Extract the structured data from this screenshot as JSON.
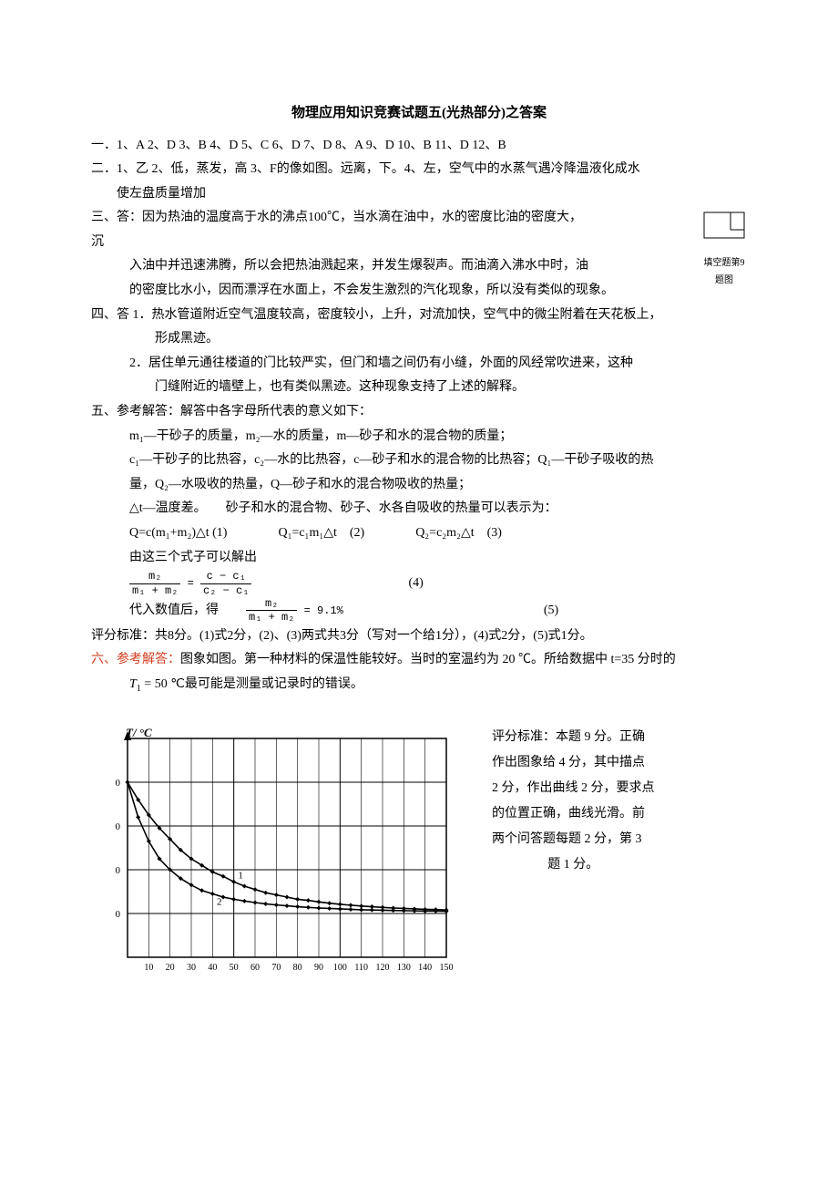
{
  "title": "物理应用知识竞赛试题五(光热部分)之答案",
  "section1": "一．1、A 2、D 3、B 4、D 5、C 6、D 7、D 8、A 9、D 10、B 11、D 12、B",
  "section2_a": "二．1、乙  2、低，蒸发，高  3、F的像如图。远离，下。4、左，空气中的水蒸气遇冷降温液化成水",
  "section2_b": "使左盘质量增加",
  "section3_a": "三、答：因为热油的温度高于水的沸点100℃，当水滴在油中，水的密度比油的密度大，",
  "section3_a2": "沉",
  "section3_b": "入油中并迅速沸腾，所以会把热油溅起来，并发生爆裂声。而油滴入沸水中时，油",
  "section3_c": "的密度比水小，因而漂浮在水面上，不会发生激烈的汽化现象，所以没有类似的现象。",
  "section4_a": "四、答 1．热水管道附近空气温度较高，密度较小，上升，对流加快，空气中的微尘附着在天花板上，",
  "section4_b": "形成黑迹。",
  "section4_c": "2．居住单元通往楼道的门比较严实，但门和墙之间仍有小缝，外面的风经常吹进来，这种",
  "section4_d": "门缝附近的墙壁上，也有类似黑迹。这种现象支持了上述的解释。",
  "section5_a": "五、参考解答：解答中各字母所代表的意义如下：",
  "section5_b": "m₁—干砂子的质量，m₂—水的质量，m—砂子和水的混合物的质量；",
  "section5_c": "c₁—干砂子的比热容，c₂—水的比热容，c—砂子和水的混合物的比热容；Q₁—干砂子吸收的热",
  "section5_d": "量，Q₂—水吸收的热量，Q—砂子和水的混合物吸收的热量；",
  "section5_e": "△t—温度差。　　砂子和水的混合物、砂子、水各自吸收的热量可以表示为：",
  "section5_f": "Q=c(m₁+m₂)△t (1)　　　　Q₁=c₁m₁△t　(2)　　　　Q₂=c₂m₂△t　(3)",
  "section5_g": "由这三个式子可以解出",
  "eq4_num_l": "m₂",
  "eq4_den_l": "m₁ + m₂",
  "eq4_eq": "=",
  "eq4_num_r": "c − c₁",
  "eq4_den_r": "c₂ − c₁",
  "eq4_label": "(4)",
  "section5_h": "代入数值后，得",
  "eq5_num": "m₂",
  "eq5_den": "m₁ + m₂",
  "eq5_rhs": "= 9.1%",
  "eq5_label": "(5)",
  "grading": "评分标准：共8分。(1)式2分，(2)、(3)两式共3分（写对一个给1分），(4)式2分，(5)式1分。",
  "section6_a": "六、参考解答：",
  "section6_b": "图象如图。第一种材料的保温性能较好。当时的室温约为 20 ℃。所给数据中 t=35 分时的",
  "section6_c_pre": "T",
  "section6_c_sub": "1",
  "section6_c_post": " = 50 ℃最可能是测量或记录时的错误。",
  "right_fig_caption": "填空题第9题图",
  "chart": {
    "ylabel": "T/ °C",
    "x_min": 0,
    "x_max": 150,
    "y_min": 0,
    "y_max": 100,
    "x_ticks": [
      10,
      20,
      30,
      40,
      50,
      60,
      70,
      80,
      90,
      100,
      110,
      120,
      130,
      140,
      150
    ],
    "grid_color": "#000000",
    "bg_color": "#ffffff",
    "line_color": "#000000",
    "marker_size": 2.5,
    "curve1_label": "1",
    "curve2_label": "2",
    "curve1": [
      [
        0,
        80
      ],
      [
        5,
        72
      ],
      [
        10,
        65
      ],
      [
        15,
        59
      ],
      [
        20,
        54
      ],
      [
        25,
        49
      ],
      [
        30,
        45
      ],
      [
        35,
        42
      ],
      [
        40,
        39
      ],
      [
        45,
        37
      ],
      [
        50,
        34.5
      ],
      [
        55,
        32.5
      ],
      [
        60,
        31
      ],
      [
        65,
        29.5
      ],
      [
        70,
        28.5
      ],
      [
        75,
        27.5
      ],
      [
        80,
        26.5
      ],
      [
        85,
        26
      ],
      [
        90,
        25.3
      ],
      [
        95,
        24.7
      ],
      [
        100,
        24.2
      ],
      [
        105,
        23.8
      ],
      [
        110,
        23.4
      ],
      [
        115,
        23.1
      ],
      [
        120,
        22.8
      ],
      [
        125,
        22.5
      ],
      [
        130,
        22.3
      ],
      [
        135,
        22.1
      ],
      [
        140,
        21.9
      ],
      [
        145,
        21.8
      ],
      [
        150,
        21.6
      ]
    ],
    "curve2": [
      [
        0,
        80
      ],
      [
        5,
        64
      ],
      [
        10,
        53
      ],
      [
        15,
        45
      ],
      [
        20,
        40
      ],
      [
        25,
        36
      ],
      [
        30,
        33
      ],
      [
        35,
        30.5
      ],
      [
        40,
        29
      ],
      [
        45,
        27.5
      ],
      [
        50,
        26.5
      ],
      [
        55,
        25.7
      ],
      [
        60,
        25
      ],
      [
        65,
        24.4
      ],
      [
        70,
        23.9
      ],
      [
        75,
        23.5
      ],
      [
        80,
        23.1
      ],
      [
        85,
        22.8
      ],
      [
        90,
        22.5
      ],
      [
        95,
        22.3
      ],
      [
        100,
        22.1
      ],
      [
        105,
        21.9
      ],
      [
        110,
        21.7
      ],
      [
        115,
        21.6
      ],
      [
        120,
        21.5
      ],
      [
        125,
        21.4
      ],
      [
        130,
        21.3
      ],
      [
        135,
        21.2
      ],
      [
        140,
        21.1
      ],
      [
        145,
        21.1
      ],
      [
        150,
        21.0
      ]
    ]
  },
  "chart_side_a": "评分标准：本题 9 分。正确",
  "chart_side_b": "作出图象给 4 分，其中描点",
  "chart_side_c": "2 分，作出曲线 2 分，要求点",
  "chart_side_d": "的位置正确，曲线光滑。前",
  "chart_side_e": "两个问答题每题 2 分，第 3",
  "chart_side_f": "题 1 分。"
}
